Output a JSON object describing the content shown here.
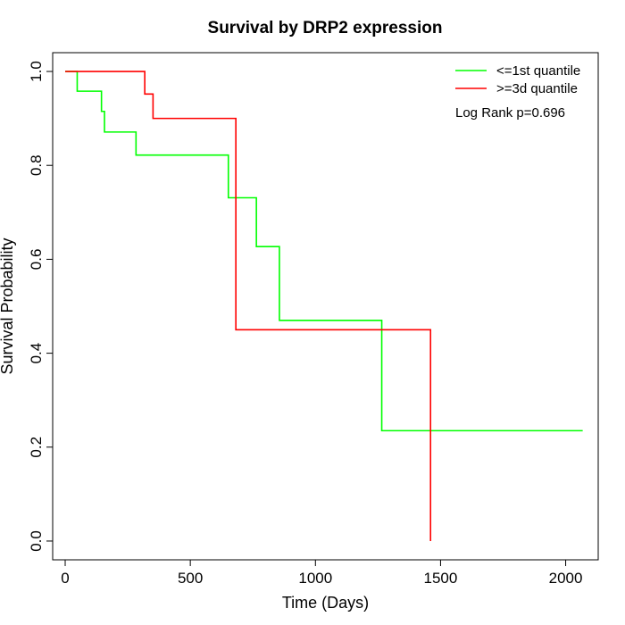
{
  "chart_data": {
    "type": "line",
    "title": "Survival by DRP2 expression",
    "xlabel": "Time (Days)",
    "ylabel": "Survival Probability",
    "xlim": [
      -50,
      2130
    ],
    "ylim": [
      -0.04,
      1.04
    ],
    "x_ticks": [
      {
        "value": 0,
        "label": "0"
      },
      {
        "value": 500,
        "label": "500"
      },
      {
        "value": 1000,
        "label": "1000"
      },
      {
        "value": 1500,
        "label": "1500"
      },
      {
        "value": 2000,
        "label": "2000"
      }
    ],
    "y_ticks": [
      {
        "value": 0.0,
        "label": "0.0"
      },
      {
        "value": 0.2,
        "label": "0.2"
      },
      {
        "value": 0.4,
        "label": "0.4"
      },
      {
        "value": 0.6,
        "label": "0.6"
      },
      {
        "value": 0.8,
        "label": "0.8"
      },
      {
        "value": 1.0,
        "label": "1.0"
      }
    ],
    "grid": false,
    "legend_position": "top-right",
    "annotation": "Log Rank p=0.696",
    "series": [
      {
        "name": "<=1st quantile",
        "color": "#00ff00",
        "step": "post",
        "points": [
          [
            0,
            1.0
          ],
          [
            48,
            0.958
          ],
          [
            145,
            0.915
          ],
          [
            157,
            0.871
          ],
          [
            283,
            0.822
          ],
          [
            652,
            0.731
          ],
          [
            764,
            0.627
          ],
          [
            856,
            0.47
          ],
          [
            1265,
            0.235
          ],
          [
            2068,
            0.235
          ]
        ]
      },
      {
        "name": ">=3d quantile",
        "color": "#ff0000",
        "step": "post",
        "points": [
          [
            0,
            1.0
          ],
          [
            318,
            0.952
          ],
          [
            351,
            0.9
          ],
          [
            682,
            0.45
          ],
          [
            1460,
            0.0
          ]
        ]
      }
    ]
  }
}
